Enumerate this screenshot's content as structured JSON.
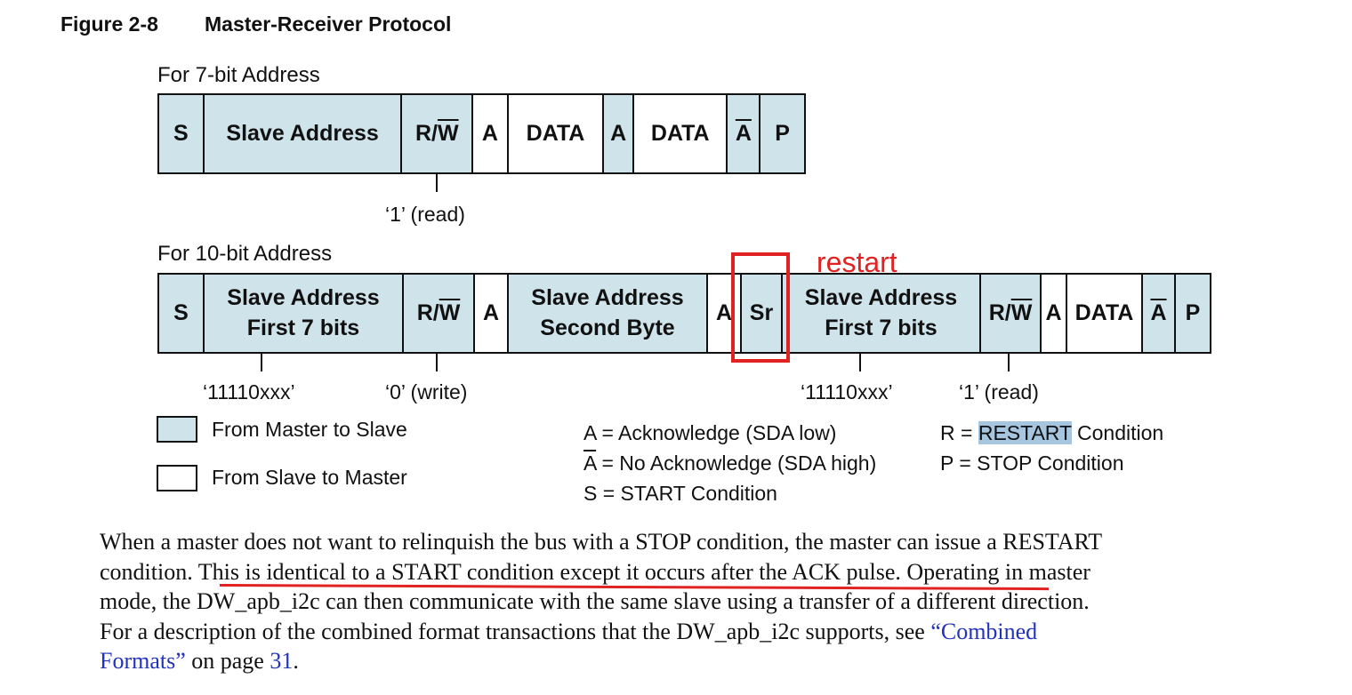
{
  "figure": {
    "number": "Figure 2-8",
    "title": "Master-Receiver Protocol"
  },
  "seven_bit": {
    "label": "For 7-bit Address",
    "cells": [
      "S",
      "Slave Address",
      "R/",
      "W",
      "A",
      "DATA",
      "A",
      "DATA",
      "A",
      "P"
    ],
    "rw_note": "‘1’ (read)"
  },
  "ten_bit": {
    "label": "For 10-bit Address",
    "cells": {
      "s": "S",
      "addr1_l1": "Slave Address",
      "addr1_l2": "First 7 bits",
      "rw1_r": "R/",
      "rw1_w": "W",
      "a1": "A",
      "addr2_l1": "Slave Address",
      "addr2_l2": "Second Byte",
      "a2": "A",
      "sr": "Sr",
      "addr3_l1": "Slave Address",
      "addr3_l2": "First 7 bits",
      "rw2_r": "R/",
      "rw2_w": "W",
      "a3": "A",
      "data": "DATA",
      "nack": "A",
      "p": "P"
    },
    "notes": {
      "addr1": "‘11110xxx’",
      "rw1": "‘0’ (write)",
      "addr3": "‘11110xxx’",
      "rw2": "‘1’ (read)"
    }
  },
  "annotation": {
    "label": "restart",
    "color": "#e02222"
  },
  "legend": {
    "master_to_slave": "From Master to Slave",
    "slave_to_master": "From Slave to Master",
    "ack_prefix": "A",
    "ack_def": " = Acknowledge (SDA low)",
    "nack_prefix": "A",
    "nack_def": " = No Acknowledge (SDA high)",
    "start": "S = START Condition",
    "restart_prefix": "R = ",
    "restart_word": "RESTART",
    "restart_suffix": " Condition",
    "stop": "P = STOP Condition"
  },
  "colors": {
    "master_fill": "#cfe3ea",
    "slave_fill": "#ffffff",
    "link": "#2233bb",
    "highlight": "#a6c6e0"
  },
  "paragraph": {
    "line1": "When a master does not want to relinquish the bus with a STOP condition, the master can issue a RESTART",
    "line2_a": "condition. ",
    "line2_b": "This is identical to a START condition except it occurs after the ACK pulse.",
    "line2_c": " Operating in master",
    "line3": "mode, the DW_apb_i2c can then communicate with the same slave using a transfer of a different direction.",
    "line4_a": "For a description of the combined format transactions that the DW_apb_i2c supports, see ",
    "line4_link": "“Combined",
    "line5_link": "Formats”",
    "line5_b": " on page ",
    "line5_page": "31",
    "line5_c": "."
  }
}
